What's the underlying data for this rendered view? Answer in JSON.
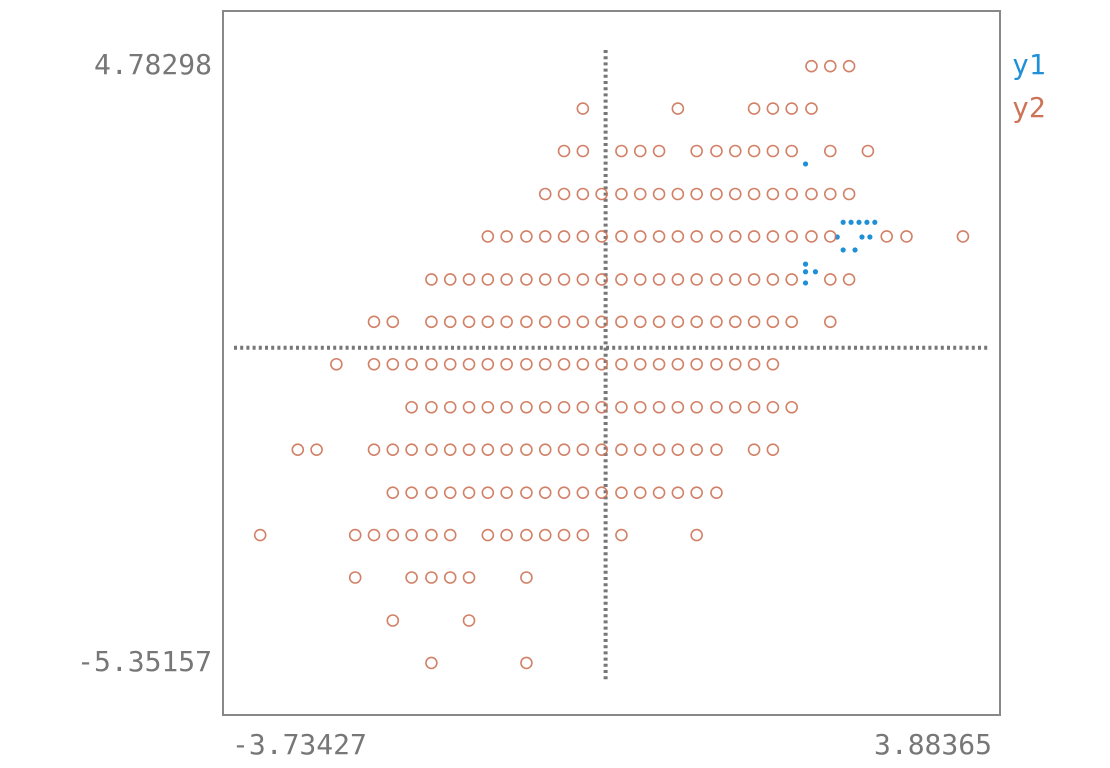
{
  "chart_data": {
    "type": "scatter",
    "xlim": [
      -3.73427,
      3.88365
    ],
    "ylim": [
      -5.35157,
      4.78298
    ],
    "xticks": [
      -3.73427,
      3.88365
    ],
    "yticks": [
      -5.35157,
      4.78298
    ],
    "legend": "right",
    "series": [
      {
        "name": "y1",
        "color": "#1f8fd8",
        "marker": "dot",
        "x": [
          2.02,
          2.4,
          2.48,
          2.56,
          2.64,
          2.72,
          2.34,
          2.59,
          2.67,
          2.4,
          2.52,
          2.02,
          2.02,
          2.02,
          2.12
        ],
        "values": [
          3.12,
          2.13,
          2.13,
          2.13,
          2.13,
          2.13,
          1.88,
          1.88,
          1.88,
          1.66,
          1.66,
          1.42,
          1.29,
          1.1,
          1.29
        ]
      },
      {
        "name": "y2",
        "color": "#cd7357",
        "marker": "circle",
        "x": [
          2.08,
          2.27,
          2.46,
          -0.23,
          0.73,
          1.5,
          1.69,
          1.88,
          2.08,
          -0.42,
          -0.23,
          0.16,
          0.35,
          0.54,
          0.92,
          1.12,
          1.31,
          1.5,
          1.69,
          1.88,
          2.27,
          2.65,
          -0.61,
          -0.42,
          -0.23,
          -0.04,
          0.16,
          0.35,
          0.54,
          0.73,
          0.92,
          1.12,
          1.31,
          1.5,
          1.69,
          1.88,
          2.08,
          2.27,
          2.46,
          -1.19,
          -1.0,
          -0.8,
          -0.61,
          -0.42,
          -0.23,
          -0.04,
          0.16,
          0.35,
          0.54,
          0.73,
          0.92,
          1.12,
          1.31,
          1.5,
          1.69,
          1.88,
          2.08,
          2.27,
          2.84,
          3.04,
          3.61,
          -1.76,
          -1.57,
          -1.38,
          -1.19,
          -1.0,
          -0.8,
          -0.61,
          -0.42,
          -0.23,
          -0.04,
          0.16,
          0.35,
          0.54,
          0.73,
          0.92,
          1.12,
          1.31,
          1.5,
          1.69,
          1.88,
          2.27,
          2.46,
          -2.34,
          -2.15,
          -1.76,
          -1.57,
          -1.38,
          -1.19,
          -1.0,
          -0.8,
          -0.61,
          -0.42,
          -0.23,
          -0.04,
          0.16,
          0.35,
          0.54,
          0.73,
          0.92,
          1.12,
          1.31,
          1.5,
          1.69,
          1.88,
          2.27,
          -2.72,
          -2.34,
          -2.15,
          -1.96,
          -1.76,
          -1.57,
          -1.38,
          -1.19,
          -1.0,
          -0.8,
          -0.61,
          -0.42,
          -0.23,
          -0.04,
          0.16,
          0.35,
          0.54,
          0.73,
          0.92,
          1.12,
          1.31,
          1.5,
          1.69,
          -1.96,
          -1.76,
          -1.57,
          -1.38,
          -1.19,
          -1.0,
          -0.8,
          -0.61,
          -0.42,
          -0.23,
          -0.04,
          0.16,
          0.35,
          0.54,
          0.73,
          0.92,
          1.12,
          1.31,
          1.5,
          1.69,
          1.88,
          -3.11,
          -2.92,
          -2.34,
          -2.15,
          -1.96,
          -1.76,
          -1.57,
          -1.38,
          -1.19,
          -1.0,
          -0.8,
          -0.61,
          -0.42,
          -0.23,
          -0.04,
          0.16,
          0.35,
          0.54,
          0.73,
          0.92,
          1.12,
          1.5,
          1.69,
          -2.15,
          -1.96,
          -1.76,
          -1.57,
          -1.38,
          -1.19,
          -1.0,
          -0.8,
          -0.61,
          -0.42,
          -0.23,
          -0.04,
          0.16,
          0.35,
          0.54,
          0.73,
          0.92,
          1.12,
          -3.49,
          -2.53,
          -2.34,
          -2.15,
          -1.96,
          -1.76,
          -1.57,
          -1.19,
          -1.0,
          -0.8,
          -0.61,
          -0.42,
          -0.23,
          0.16,
          0.92,
          -2.53,
          -1.96,
          -1.76,
          -1.57,
          -1.38,
          -0.8,
          -2.15,
          -1.38,
          -1.76,
          -0.8
        ],
        "values": [
          4.78,
          4.78,
          4.78,
          4.06,
          4.06,
          4.06,
          4.06,
          4.06,
          4.06,
          3.34,
          3.34,
          3.34,
          3.34,
          3.34,
          3.34,
          3.34,
          3.34,
          3.34,
          3.34,
          3.34,
          3.34,
          3.34,
          2.61,
          2.61,
          2.61,
          2.61,
          2.61,
          2.61,
          2.61,
          2.61,
          2.61,
          2.61,
          2.61,
          2.61,
          2.61,
          2.61,
          2.61,
          2.61,
          2.61,
          1.89,
          1.89,
          1.89,
          1.89,
          1.89,
          1.89,
          1.89,
          1.89,
          1.89,
          1.89,
          1.89,
          1.89,
          1.89,
          1.89,
          1.89,
          1.89,
          1.89,
          1.89,
          1.89,
          1.89,
          1.89,
          1.89,
          1.16,
          1.16,
          1.16,
          1.16,
          1.16,
          1.16,
          1.16,
          1.16,
          1.16,
          1.16,
          1.16,
          1.16,
          1.16,
          1.16,
          1.16,
          1.16,
          1.16,
          1.16,
          1.16,
          1.16,
          1.16,
          1.16,
          0.44,
          0.44,
          0.44,
          0.44,
          0.44,
          0.44,
          0.44,
          0.44,
          0.44,
          0.44,
          0.44,
          0.44,
          0.44,
          0.44,
          0.44,
          0.44,
          0.44,
          0.44,
          0.44,
          0.44,
          0.44,
          0.44,
          0.44,
          -0.28,
          -0.28,
          -0.28,
          -0.28,
          -0.28,
          -0.28,
          -0.28,
          -0.28,
          -0.28,
          -0.28,
          -0.28,
          -0.28,
          -0.28,
          -0.28,
          -0.28,
          -0.28,
          -0.28,
          -0.28,
          -0.28,
          -0.28,
          -0.28,
          -0.28,
          -0.28,
          -1.01,
          -1.01,
          -1.01,
          -1.01,
          -1.01,
          -1.01,
          -1.01,
          -1.01,
          -1.01,
          -1.01,
          -1.01,
          -1.01,
          -1.01,
          -1.01,
          -1.01,
          -1.01,
          -1.01,
          -1.01,
          -1.01,
          -1.01,
          -1.01,
          -1.73,
          -1.73,
          -1.73,
          -1.73,
          -1.73,
          -1.73,
          -1.73,
          -1.73,
          -1.73,
          -1.73,
          -1.73,
          -1.73,
          -1.73,
          -1.73,
          -1.73,
          -1.73,
          -1.73,
          -1.73,
          -1.73,
          -1.73,
          -1.73,
          -1.73,
          -1.73,
          -2.46,
          -2.46,
          -2.46,
          -2.46,
          -2.46,
          -2.46,
          -2.46,
          -2.46,
          -2.46,
          -2.46,
          -2.46,
          -2.46,
          -2.46,
          -2.46,
          -2.46,
          -2.46,
          -2.46,
          -2.46,
          -3.18,
          -3.18,
          -3.18,
          -3.18,
          -3.18,
          -3.18,
          -3.18,
          -3.18,
          -3.18,
          -3.18,
          -3.18,
          -3.18,
          -3.18,
          -3.18,
          -3.18,
          -3.9,
          -3.9,
          -3.9,
          -3.9,
          -3.9,
          -3.9,
          -4.63,
          -4.63,
          -5.35,
          -5.35
        ]
      }
    ]
  }
}
